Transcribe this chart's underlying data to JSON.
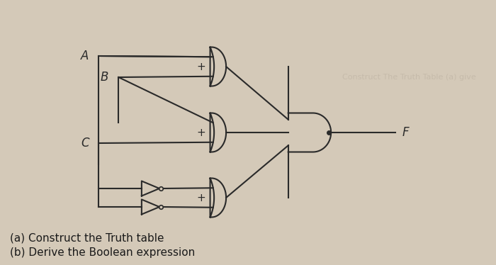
{
  "bg_color": "#d4c9b8",
  "line_color": "#2a2a2a",
  "line_width": 1.5,
  "label_A": "A",
  "label_B": "B",
  "label_C": "C",
  "label_F": "F",
  "label_a": "(a) Construct the Truth table",
  "label_b": "(b) Derive the Boolean expression",
  "text_color": "#1a1a1a",
  "gate_fill": "#d4c9b8",
  "watermark_text": "Construct The Truth Table (a) give",
  "watermark_color": "#c0b5a5"
}
